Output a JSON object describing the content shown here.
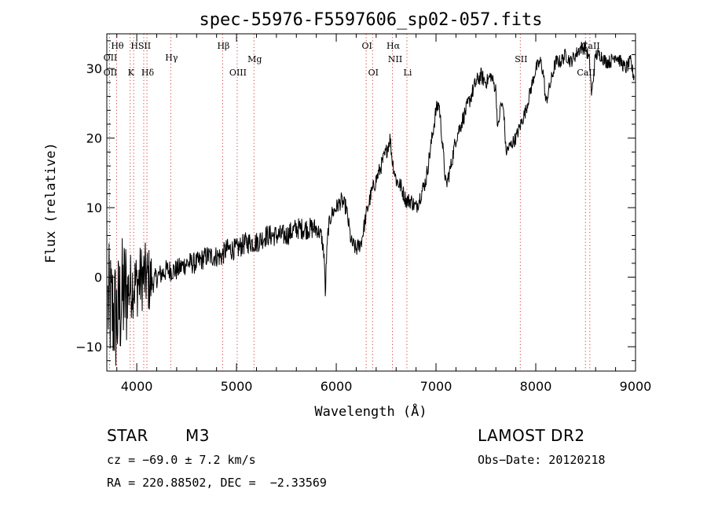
{
  "chart_data": {
    "type": "line",
    "title": "spec-55976-F5597606_sp02-057.fits",
    "xlabel": "Wavelength (Å)",
    "ylabel": "Flux (relative)",
    "xlim": [
      3700,
      9000
    ],
    "ylim": [
      -13.5,
      35
    ],
    "xticks": [
      4000,
      5000,
      6000,
      7000,
      8000,
      9000
    ],
    "xticklabels": [
      "4000",
      "5000",
      "6000",
      "7000",
      "8000",
      "9000"
    ],
    "yticks": [
      -10,
      0,
      10,
      20,
      30
    ],
    "yticklabels": [
      "−10",
      "0",
      "10",
      "20",
      "30"
    ],
    "spectrum_anchors": {
      "x": [
        3720,
        3760,
        3800,
        3850,
        3900,
        3950,
        4000,
        4050,
        4100,
        4150,
        4200,
        4300,
        4400,
        4500,
        4600,
        4700,
        4800,
        4850,
        4900,
        5000,
        5100,
        5200,
        5300,
        5400,
        5500,
        5600,
        5700,
        5800,
        5850,
        5880,
        5890,
        5900,
        5920,
        5950,
        6000,
        6050,
        6100,
        6150,
        6200,
        6250,
        6300,
        6350,
        6400,
        6450,
        6500,
        6540,
        6560,
        6600,
        6650,
        6700,
        6750,
        6800,
        6850,
        6900,
        6950,
        7000,
        7030,
        7060,
        7100,
        7150,
        7200,
        7250,
        7300,
        7350,
        7400,
        7450,
        7500,
        7550,
        7600,
        7620,
        7650,
        7680,
        7700,
        7750,
        7800,
        7850,
        7900,
        7950,
        8000,
        8050,
        8080,
        8100,
        8150,
        8200,
        8250,
        8300,
        8350,
        8400,
        8450,
        8500,
        8540,
        8560,
        8600,
        8650,
        8700,
        8750,
        8800,
        8850,
        8900,
        8950,
        8980
      ],
      "y": [
        -4,
        -5,
        -6,
        -3,
        -2,
        -1,
        -1,
        0,
        0,
        -1,
        0,
        1,
        1,
        2,
        2,
        3,
        3,
        3,
        4,
        4,
        5,
        5,
        6,
        6,
        6,
        7,
        7,
        7,
        6,
        3,
        -3,
        2,
        7,
        9,
        10,
        11,
        10,
        5,
        4,
        5,
        9,
        12,
        14,
        16,
        18,
        20,
        17,
        14,
        13,
        11,
        11,
        10,
        12,
        14,
        19,
        24,
        25,
        20,
        13,
        16,
        20,
        22,
        24,
        26,
        28,
        29,
        28,
        29,
        27,
        21,
        25,
        24,
        18,
        19,
        20,
        22,
        24,
        27,
        30,
        31,
        29,
        25,
        28,
        31,
        31,
        32,
        31,
        32,
        33,
        33,
        31,
        26,
        32,
        32,
        31,
        31,
        32,
        31,
        30,
        31,
        29
      ]
    },
    "lines": {
      "top": [
        {
          "label": "Hθ",
          "x": 3798
        },
        {
          "label": "OII",
          "x": 3727
        },
        {
          "label": "H",
          "x": 3969
        },
        {
          "label": "SII",
          "x": 4070
        },
        {
          "label": "Hγ",
          "x": 4341
        },
        {
          "label": "Hβ",
          "x": 4861
        },
        {
          "label": "Mg",
          "x": 5175
        },
        {
          "label": "OI",
          "x": 6300
        },
        {
          "label": "Hα",
          "x": 6563
        },
        {
          "label": "NII",
          "x": 6583
        },
        {
          "label": "SII",
          "x": 7845
        },
        {
          "label": "CaII",
          "x": 8542
        }
      ],
      "mid": [
        {
          "label": "OII",
          "x": 3727
        },
        {
          "label": "K",
          "x": 3934
        },
        {
          "label": "Hδ",
          "x": 4102
        },
        {
          "label": "OIII",
          "x": 5007
        },
        {
          "label": "OI",
          "x": 6364
        },
        {
          "label": "Li",
          "x": 6708
        },
        {
          "label": "CaII",
          "x": 8498
        }
      ],
      "dotted_x": [
        3727,
        3798,
        3934,
        3969,
        4070,
        4102,
        4341,
        4861,
        5007,
        5175,
        6300,
        6364,
        6563,
        6708,
        7845,
        8498,
        8542
      ]
    }
  },
  "info": {
    "class": "STAR",
    "subclass": "M3",
    "survey": "LAMOST DR2",
    "redshift": "cz = −69.0 ± 7.2 km/s",
    "obs_date": "Obs−Date: 20120218",
    "coords": "RA = 220.88502, DEC =  −2.33569"
  }
}
